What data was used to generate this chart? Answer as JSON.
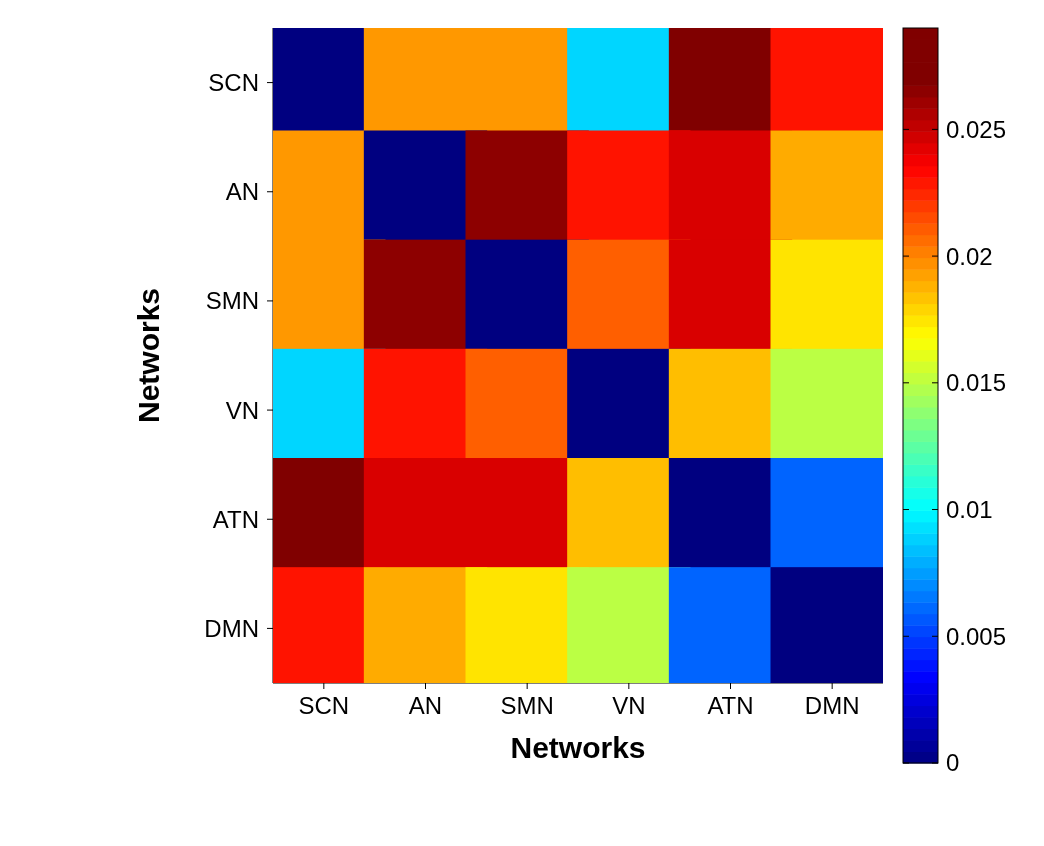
{
  "chart_data": {
    "type": "heatmap",
    "xlabel": "Networks",
    "ylabel": "Networks",
    "categories": [
      "SCN",
      "AN",
      "SMN",
      "VN",
      "ATN",
      "DMN"
    ],
    "y_categories": [
      "SCN",
      "AN",
      "SMN",
      "VN",
      "ATN",
      "DMN"
    ],
    "cells": [
      [
        0,
        0.0195,
        0.0195,
        0.009,
        0.029,
        0.023
      ],
      [
        0.0195,
        0,
        0.0265,
        0.023,
        0.0245,
        0.019
      ],
      [
        0.0195,
        0.0265,
        0,
        0.021,
        0.0245,
        0.0175
      ],
      [
        0.009,
        0.023,
        0.021,
        0,
        0.0185,
        0.015
      ],
      [
        0.029,
        0.0245,
        0.0245,
        0.0185,
        0,
        0.006
      ],
      [
        0.023,
        0.019,
        0.0175,
        0.015,
        0.006,
        0
      ]
    ],
    "clim": [
      0,
      0.029
    ],
    "cticks": [
      0,
      0.005,
      0.01,
      0.015,
      0.02,
      0.025
    ]
  }
}
